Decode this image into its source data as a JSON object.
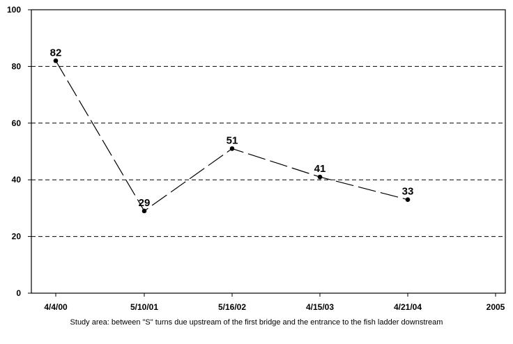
{
  "chart_data": {
    "type": "line",
    "categories": [
      "4/4/00",
      "5/10/01",
      "5/16/02",
      "4/15/03",
      "4/21/04",
      "2005"
    ],
    "series": [
      {
        "values": [
          82,
          29,
          51,
          41,
          33,
          null
        ]
      }
    ],
    "data_labels": [
      "82",
      "29",
      "51",
      "41",
      "33"
    ],
    "ylim": [
      0,
      100
    ],
    "yticks": [
      0,
      20,
      40,
      60,
      80,
      100
    ],
    "grid": "horizontal dashed",
    "line_style": "long-dash",
    "marker": "filled circle",
    "line_color": "#000000"
  },
  "caption": "Study area: between \"S\" turns due upstream of the first bridge and the entrance to the fish ladder downstream"
}
